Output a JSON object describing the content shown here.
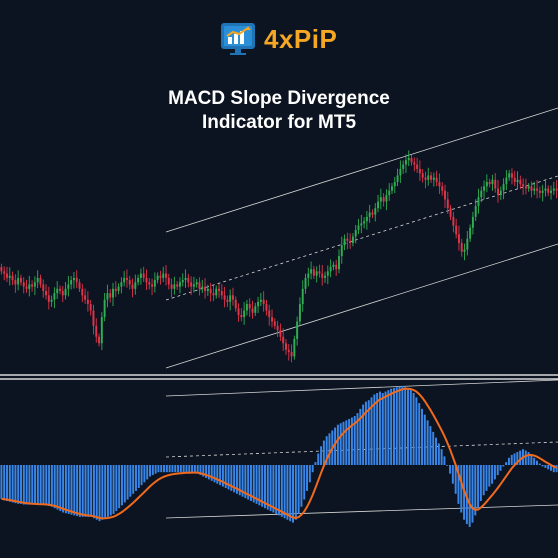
{
  "brand": {
    "name": "4xPiP",
    "logo_icon": "chart-board-icon",
    "color": "#f5a623"
  },
  "title_line1": "MACD Slope Divergence",
  "title_line2": "Indicator for MT5",
  "colors": {
    "background": "#0b1420",
    "bull_candle": "#2fae52",
    "bear_candle": "#e0344a",
    "channel": "#d6d6d6",
    "histogram": "#3a86e8",
    "signal_line": "#f06a1e",
    "divider": "#ffffff"
  },
  "chart_data": [
    {
      "type": "candlestick",
      "title": "",
      "channel": "upward parallel channel with dashed median, starting near bar 83",
      "closes": [
        0.63,
        0.62,
        0.6,
        0.61,
        0.59,
        0.57,
        0.6,
        0.58,
        0.56,
        0.55,
        0.57,
        0.56,
        0.58,
        0.6,
        0.57,
        0.54,
        0.52,
        0.49,
        0.5,
        0.53,
        0.55,
        0.54,
        0.52,
        0.55,
        0.57,
        0.59,
        0.6,
        0.58,
        0.55,
        0.52,
        0.5,
        0.48,
        0.45,
        0.38,
        0.33,
        0.3,
        0.42,
        0.5,
        0.53,
        0.51,
        0.55,
        0.54,
        0.56,
        0.58,
        0.6,
        0.59,
        0.57,
        0.55,
        0.58,
        0.6,
        0.62,
        0.6,
        0.58,
        0.57,
        0.56,
        0.59,
        0.61,
        0.6,
        0.62,
        0.6,
        0.57,
        0.55,
        0.57,
        0.56,
        0.58,
        0.59,
        0.6,
        0.58,
        0.56,
        0.57,
        0.58,
        0.55,
        0.56,
        0.54,
        0.55,
        0.53,
        0.52,
        0.55,
        0.54,
        0.52,
        0.5,
        0.49,
        0.52,
        0.5,
        0.46,
        0.43,
        0.42,
        0.45,
        0.48,
        0.46,
        0.44,
        0.47,
        0.49,
        0.5,
        0.48,
        0.45,
        0.42,
        0.4,
        0.38,
        0.36,
        0.33,
        0.3,
        0.27,
        0.26,
        0.24,
        0.32,
        0.4,
        0.48,
        0.55,
        0.6,
        0.62,
        0.64,
        0.61,
        0.63,
        0.62,
        0.6,
        0.61,
        0.63,
        0.65,
        0.66,
        0.64,
        0.7,
        0.75,
        0.78,
        0.77,
        0.76,
        0.79,
        0.82,
        0.84,
        0.85,
        0.86,
        0.88,
        0.9,
        0.89,
        0.92,
        0.95,
        0.97,
        0.95,
        0.98,
        1.0,
        1.02,
        1.04,
        1.07,
        1.1,
        1.12,
        1.14,
        1.15,
        1.13,
        1.12,
        1.1,
        1.08,
        1.06,
        1.05,
        1.07,
        1.05,
        1.06,
        1.04,
        1.02,
        1.0,
        0.96,
        0.92,
        0.88,
        0.84,
        0.8,
        0.76,
        0.72,
        0.73,
        0.78,
        0.83,
        0.88,
        0.93,
        0.97,
        1.0,
        1.02,
        1.04,
        1.03,
        1.05,
        1.01,
        0.98,
        1.0,
        1.03,
        1.06,
        1.08,
        1.06,
        1.04,
        1.05,
        1.03,
        1.02,
        1.01,
        1.02,
        1.0,
        1.01,
        1.0,
        0.99,
        1.0,
        1.01,
        0.99,
        1.0,
        1.01,
        1.0
      ]
    },
    {
      "type": "bar",
      "title": "",
      "series_hist": "MACD histogram",
      "series_line": "signal line",
      "channel": "downward-to-flat diverging channel with dashed median",
      "histogram": [
        -0.47,
        -0.49,
        -0.5,
        -0.51,
        -0.52,
        -0.53,
        -0.54,
        -0.54,
        -0.55,
        -0.55,
        -0.55,
        -0.55,
        -0.55,
        -0.55,
        -0.55,
        -0.55,
        -0.56,
        -0.57,
        -0.58,
        -0.6,
        -0.62,
        -0.64,
        -0.66,
        -0.67,
        -0.68,
        -0.69,
        -0.7,
        -0.71,
        -0.72,
        -0.72,
        -0.72,
        -0.72,
        -0.72,
        -0.74,
        -0.76,
        -0.78,
        -0.76,
        -0.74,
        -0.72,
        -0.7,
        -0.68,
        -0.64,
        -0.6,
        -0.56,
        -0.52,
        -0.48,
        -0.44,
        -0.4,
        -0.36,
        -0.32,
        -0.28,
        -0.24,
        -0.2,
        -0.16,
        -0.14,
        -0.12,
        -0.1,
        -0.1,
        -0.1,
        -0.1,
        -0.1,
        -0.1,
        -0.1,
        -0.1,
        -0.1,
        -0.1,
        -0.1,
        -0.1,
        -0.1,
        -0.1,
        -0.12,
        -0.14,
        -0.16,
        -0.18,
        -0.2,
        -0.22,
        -0.24,
        -0.26,
        -0.28,
        -0.3,
        -0.32,
        -0.34,
        -0.36,
        -0.38,
        -0.4,
        -0.42,
        -0.44,
        -0.46,
        -0.48,
        -0.5,
        -0.52,
        -0.54,
        -0.56,
        -0.58,
        -0.6,
        -0.62,
        -0.64,
        -0.66,
        -0.68,
        -0.7,
        -0.72,
        -0.74,
        -0.76,
        -0.78,
        -0.8,
        -0.76,
        -0.68,
        -0.58,
        -0.48,
        -0.36,
        -0.24,
        -0.1,
        0.04,
        0.16,
        0.26,
        0.34,
        0.4,
        0.44,
        0.48,
        0.52,
        0.56,
        0.58,
        0.6,
        0.62,
        0.64,
        0.66,
        0.68,
        0.72,
        0.78,
        0.84,
        0.88,
        0.9,
        0.94,
        0.98,
        1.0,
        1.02,
        1.0,
        1.02,
        1.04,
        1.06,
        1.07,
        1.08,
        1.09,
        1.1,
        1.08,
        1.06,
        1.04,
        1.0,
        0.94,
        0.86,
        0.78,
        0.7,
        0.62,
        0.54,
        0.46,
        0.38,
        0.3,
        0.22,
        0.12,
        0.0,
        -0.12,
        -0.26,
        -0.4,
        -0.54,
        -0.66,
        -0.76,
        -0.82,
        -0.86,
        -0.8,
        -0.7,
        -0.6,
        -0.5,
        -0.42,
        -0.36,
        -0.3,
        -0.26,
        -0.2,
        -0.14,
        -0.08,
        -0.02,
        0.04,
        0.1,
        0.14,
        0.16,
        0.18,
        0.2,
        0.22,
        0.2,
        0.18,
        0.14,
        0.1,
        0.06,
        0.02,
        -0.02,
        -0.04,
        -0.06,
        -0.08,
        -0.1,
        -0.1
      ]
    }
  ]
}
